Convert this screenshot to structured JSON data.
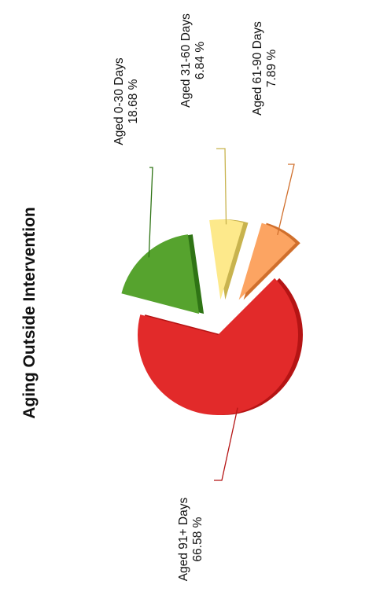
{
  "chart_data": {
    "type": "pie",
    "title": "Aging Outside Intervention",
    "orientation": "rotated-90-ccw",
    "exploded": true,
    "three_d": true,
    "slices": [
      {
        "label": "Aged 91+ Days",
        "value": 66.58,
        "value_text": "66.58 %",
        "color": "#e22a2a",
        "shade": "#b51414"
      },
      {
        "label": "Aged 0-30 Days",
        "value": 18.68,
        "value_text": "18.68 %",
        "color": "#56a32e",
        "shade": "#2f7415"
      },
      {
        "label": "Aged 31-60 Days",
        "value": 6.84,
        "value_text": "6.84 %",
        "color": "#fde98b",
        "shade": "#c8b34e"
      },
      {
        "label": "Aged 61-90 Days",
        "value": 7.89,
        "value_text": "7.89 %",
        "color": "#fca462",
        "shade": "#d06f2c"
      }
    ]
  }
}
